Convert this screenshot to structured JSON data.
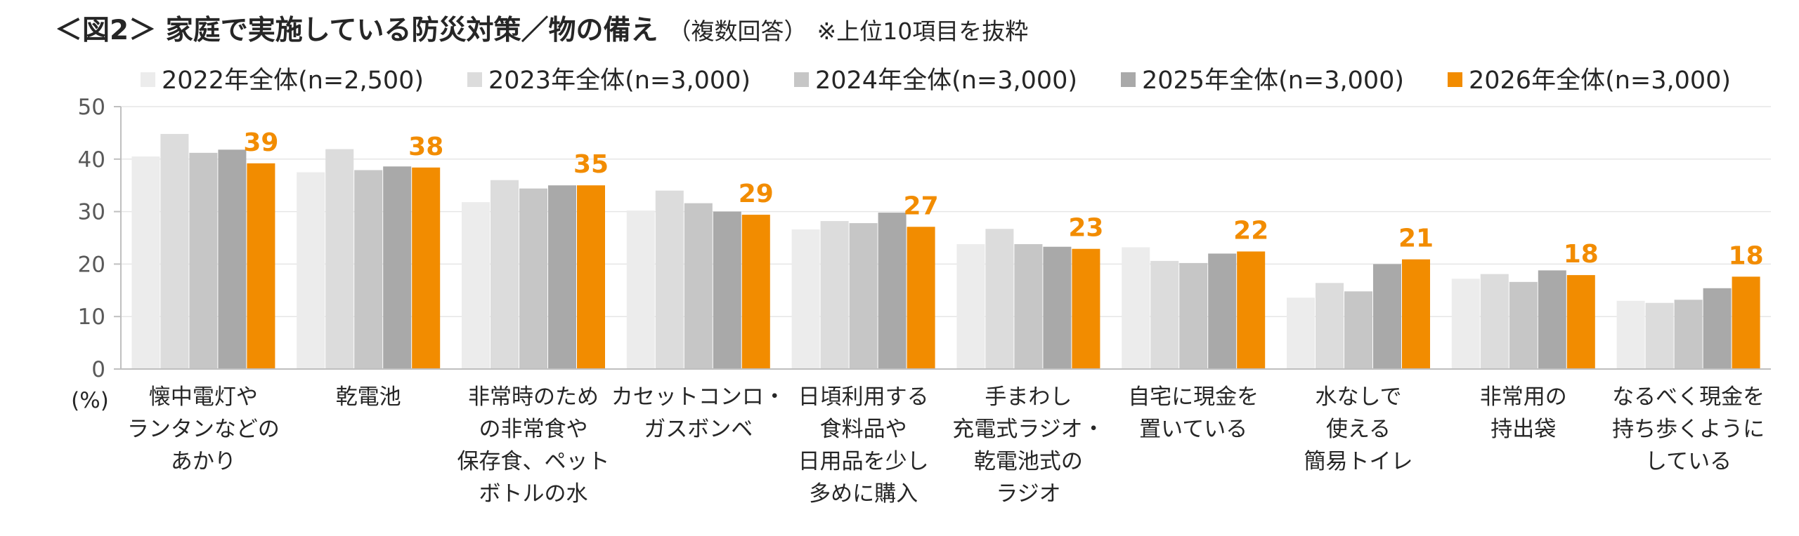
{
  "title": {
    "main": "＜図2＞ 家庭で実施している防災対策／物の備え",
    "sub": "（複数回答）",
    "note": "※上位10項目を抜粋"
  },
  "chart_data": {
    "type": "bar",
    "unit": "(%)",
    "ylim": [
      0,
      50
    ],
    "yticks": [
      0,
      10,
      20,
      30,
      40,
      50
    ],
    "legend_position": "top",
    "categories": [
      [
        "懐中電灯や",
        "ランタンなどの",
        "あかり"
      ],
      [
        "乾電池"
      ],
      [
        "非常時のため",
        "の非常食や",
        "保存食、ペット",
        "ボトルの水"
      ],
      [
        "カセットコンロ・",
        "ガスボンベ"
      ],
      [
        "日頃利用する",
        "食料品や",
        "日用品を少し",
        "多めに購入"
      ],
      [
        "手まわし",
        "充電式ラジオ・",
        "乾電池式の",
        "ラジオ"
      ],
      [
        "自宅に現金を",
        "置いている"
      ],
      [
        "水なしで",
        "使える",
        "簡易トイレ"
      ],
      [
        "非常用の",
        "持出袋"
      ],
      [
        "なるべく現金を",
        "持ち歩くように",
        "している"
      ]
    ],
    "series": [
      {
        "name": "2022年全体(n=2,500)",
        "color": "#ececec",
        "values": [
          40.5,
          37.5,
          31.8,
          30.2,
          26.6,
          23.8,
          23.2,
          13.6,
          17.2,
          13.0
        ]
      },
      {
        "name": "2023年全体(n=3,000)",
        "color": "#dcdcdc",
        "values": [
          44.8,
          41.9,
          36.0,
          34.0,
          28.2,
          26.7,
          20.6,
          16.4,
          18.1,
          12.6
        ]
      },
      {
        "name": "2024年全体(n=3,000)",
        "color": "#c6c6c6",
        "values": [
          41.2,
          37.9,
          34.4,
          31.6,
          27.8,
          23.8,
          20.2,
          14.8,
          16.6,
          13.2
        ]
      },
      {
        "name": "2025年全体(n=3,000)",
        "color": "#a9a9a9",
        "values": [
          41.8,
          38.6,
          35.0,
          30.0,
          29.8,
          23.3,
          22.0,
          20.0,
          18.8,
          15.4
        ]
      },
      {
        "name": "2026年全体(n=3,000)",
        "color": "#f28c00",
        "values": [
          39.2,
          38.4,
          35.0,
          29.4,
          27.1,
          22.9,
          22.4,
          20.9,
          17.9,
          17.6
        ],
        "data_labels": [
          "39",
          "38",
          "35",
          "29",
          "27",
          "23",
          "22",
          "21",
          "18",
          "18"
        ]
      }
    ]
  }
}
